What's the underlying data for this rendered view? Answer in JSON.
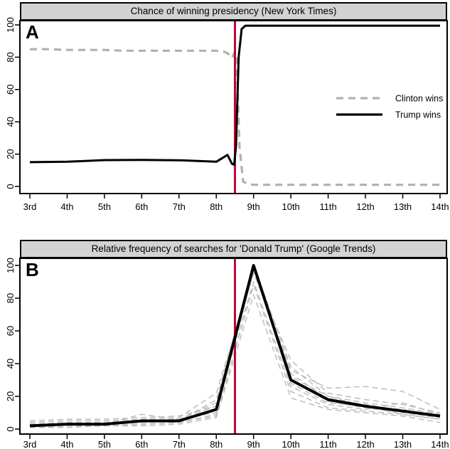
{
  "figure": {
    "background": "#ffffff",
    "border_color": "#000000",
    "title_bar_fill": "#d3d3d3",
    "event_line_color": "#c10534",
    "gray_line_color": "#b0b0b0",
    "background_trend_color": "#bdbdbd"
  },
  "chart_data": [
    {
      "type": "line",
      "panel_label": "A",
      "title": "Chance of winning presidency (New York Times)",
      "x_tick_labels": [
        "3rd",
        "4th",
        "5th",
        "6th",
        "7th",
        "8th",
        "9th",
        "10th",
        "11th",
        "12th",
        "13th",
        "14th"
      ],
      "x_tick_values": [
        3,
        4,
        5,
        6,
        7,
        8,
        9,
        10,
        11,
        12,
        13,
        14
      ],
      "y_ticks": [
        0,
        20,
        40,
        60,
        80,
        100
      ],
      "ylim": [
        0,
        100
      ],
      "grid": false,
      "event_line_x": 8.5,
      "legend": {
        "position": "right-middle",
        "entries": [
          {
            "label": "Clinton wins",
            "style": "dashed",
            "color": "#b0b0b0"
          },
          {
            "label": "Trump wins",
            "style": "solid",
            "color": "#000000"
          }
        ]
      },
      "series": [
        {
          "name": "Clinton wins",
          "style": "dashed",
          "color": "#b0b0b0",
          "width": 3.2,
          "x": [
            3,
            3.5,
            4,
            4.5,
            5,
            5.5,
            6,
            6.5,
            7,
            7.5,
            8,
            8.2,
            8.3,
            8.42,
            8.5,
            8.55,
            8.62,
            8.72,
            8.85,
            9,
            10,
            11,
            12,
            13,
            14
          ],
          "y": [
            85,
            85,
            84.5,
            84.5,
            84.5,
            84,
            84,
            84,
            84,
            84,
            84,
            83.5,
            82.5,
            79.5,
            83.5,
            78,
            25,
            3,
            1.5,
            1,
            1,
            1,
            1,
            1,
            1
          ]
        },
        {
          "name": "Trump wins",
          "style": "solid",
          "color": "#000000",
          "width": 3,
          "x": [
            3,
            4,
            5,
            6,
            7,
            8,
            8.3,
            8.42,
            8.48,
            8.53,
            8.6,
            8.68,
            8.78,
            9,
            10,
            11,
            12,
            13,
            14
          ],
          "y": [
            15,
            15.3,
            16.3,
            16.4,
            16.2,
            15.3,
            19.5,
            14,
            13.5,
            25,
            80,
            97.5,
            99.5,
            99.5,
            99.5,
            99.5,
            99.5,
            99.5,
            99.5
          ]
        }
      ]
    },
    {
      "type": "line",
      "panel_label": "B",
      "title": "Relative frequency of searches for 'Donald Trump' (Google Trends)",
      "x_tick_labels": [
        "3rd",
        "4th",
        "5th",
        "6th",
        "7th",
        "8th",
        "9th",
        "10th",
        "11th",
        "12th",
        "13th",
        "14th"
      ],
      "x_tick_values": [
        3,
        4,
        5,
        6,
        7,
        8,
        9,
        10,
        11,
        12,
        13,
        14
      ],
      "y_ticks": [
        0,
        20,
        40,
        60,
        80,
        100
      ],
      "ylim": [
        0,
        100
      ],
      "grid": false,
      "event_line_x": 8.5,
      "series": [
        {
          "name": "background trend 1",
          "style": "dashed",
          "color": "#bdbdbd",
          "width": 1.5,
          "x": [
            3,
            4,
            5,
            6,
            7,
            8,
            9,
            10,
            11,
            12,
            13,
            14
          ],
          "y": [
            5,
            6,
            6,
            7,
            8,
            14,
            96,
            36,
            25,
            26,
            23,
            12
          ]
        },
        {
          "name": "background trend 2",
          "style": "dashed",
          "color": "#bdbdbd",
          "width": 1.5,
          "x": [
            3,
            4,
            5,
            6,
            7,
            8,
            9,
            10,
            11,
            12,
            13,
            14
          ],
          "y": [
            3,
            4,
            4,
            5,
            6,
            16,
            100,
            32,
            20,
            16,
            13,
            9
          ]
        },
        {
          "name": "background trend 3",
          "style": "dashed",
          "color": "#bdbdbd",
          "width": 1.5,
          "x": [
            3,
            4,
            5,
            6,
            7,
            8,
            9,
            10,
            11,
            12,
            13,
            14
          ],
          "y": [
            2,
            3,
            3,
            9,
            6,
            10,
            100,
            28,
            16,
            14,
            12,
            8
          ]
        },
        {
          "name": "background trend 4",
          "style": "dashed",
          "color": "#bdbdbd",
          "width": 1.5,
          "x": [
            3,
            4,
            5,
            6,
            7,
            8,
            9,
            10,
            11,
            12,
            13,
            14
          ],
          "y": [
            1,
            2,
            2,
            3,
            4,
            8,
            88,
            23,
            13,
            11,
            9,
            6
          ]
        },
        {
          "name": "background trend 5",
          "style": "dashed",
          "color": "#bdbdbd",
          "width": 1.5,
          "x": [
            3,
            4,
            5,
            6,
            7,
            8,
            9,
            10,
            11,
            12,
            13,
            14
          ],
          "y": [
            2,
            2,
            3,
            4,
            5,
            18,
            100,
            34,
            18,
            15,
            11,
            7
          ]
        },
        {
          "name": "background trend 6",
          "style": "dashed",
          "color": "#bdbdbd",
          "width": 1.5,
          "x": [
            3,
            4,
            5,
            6,
            7,
            8,
            9,
            10,
            11,
            12,
            13,
            14
          ],
          "y": [
            4,
            5,
            5,
            6,
            7,
            22,
            95,
            42,
            22,
            18,
            15,
            10
          ]
        },
        {
          "name": "background trend 7",
          "style": "dashed",
          "color": "#bdbdbd",
          "width": 1.5,
          "x": [
            3,
            4,
            5,
            6,
            7,
            8,
            9,
            10,
            11,
            12,
            13,
            14
          ],
          "y": [
            1,
            1,
            2,
            2,
            3,
            7,
            82,
            19,
            12,
            10,
            8,
            4
          ]
        },
        {
          "name": "background trend 8",
          "style": "dashed",
          "color": "#bdbdbd",
          "width": 1.5,
          "x": [
            3,
            4,
            5,
            6,
            7,
            8,
            9,
            10,
            11,
            12,
            13,
            14
          ],
          "y": [
            2,
            3,
            3,
            5,
            5,
            12,
            100,
            30,
            17,
            13,
            10,
            7
          ]
        },
        {
          "name": "background trend 9",
          "style": "dashed",
          "color": "#bdbdbd",
          "width": 1.5,
          "x": [
            3,
            4,
            5,
            6,
            7,
            8,
            9,
            10,
            11,
            12,
            13,
            14
          ],
          "y": [
            3,
            3,
            4,
            5,
            6,
            14,
            90,
            26,
            15,
            12,
            16,
            9
          ]
        },
        {
          "name": "background trend 10",
          "style": "dashed",
          "color": "#bdbdbd",
          "width": 1.5,
          "x": [
            3,
            4,
            5,
            6,
            7,
            8,
            9,
            10,
            11,
            12,
            13,
            14
          ],
          "y": [
            2,
            2,
            2,
            3,
            4,
            9,
            100,
            38,
            20,
            14,
            9,
            6
          ]
        },
        {
          "name": "Donald Trump searches",
          "style": "solid",
          "color": "#000000",
          "width": 4,
          "x": [
            3,
            4,
            5,
            6,
            7,
            8,
            9,
            10,
            11,
            12,
            13,
            14
          ],
          "y": [
            2,
            3,
            3,
            5,
            5,
            12,
            100,
            30,
            18,
            14,
            11,
            8
          ]
        }
      ]
    }
  ]
}
